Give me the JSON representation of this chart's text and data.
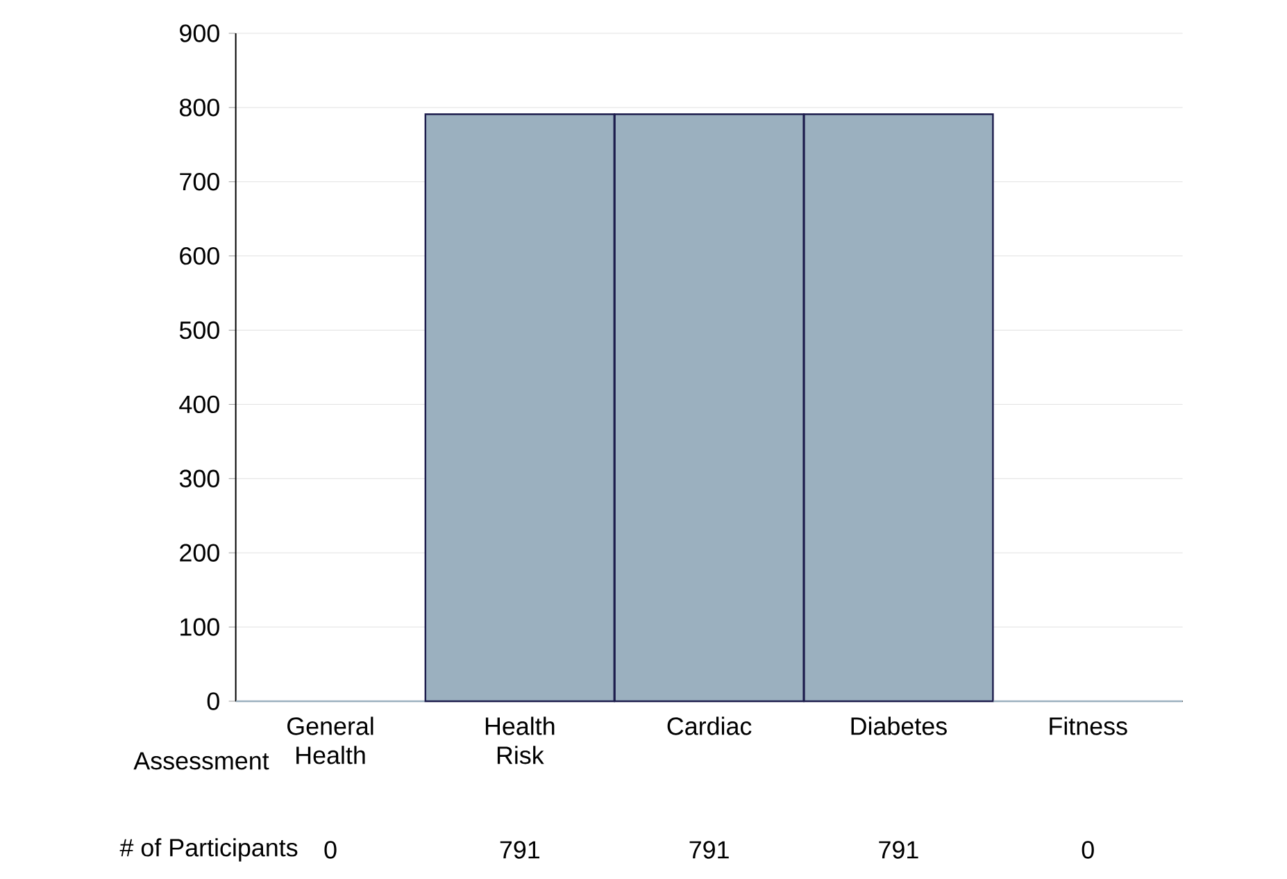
{
  "chart_data": {
    "type": "bar",
    "xlabel": "Assessment",
    "ylabel": "# of Participants",
    "categories": [
      "General Health",
      "Health Risk",
      "Cardiac",
      "Diabetes",
      "Fitness"
    ],
    "values": [
      0,
      791,
      791,
      791,
      0
    ],
    "color": "#9bb0bf",
    "ylim": [
      0,
      900
    ],
    "yticks": [
      0,
      100,
      200,
      300,
      400,
      500,
      600,
      700,
      800,
      900
    ],
    "grid": "y",
    "data_labels": true
  }
}
